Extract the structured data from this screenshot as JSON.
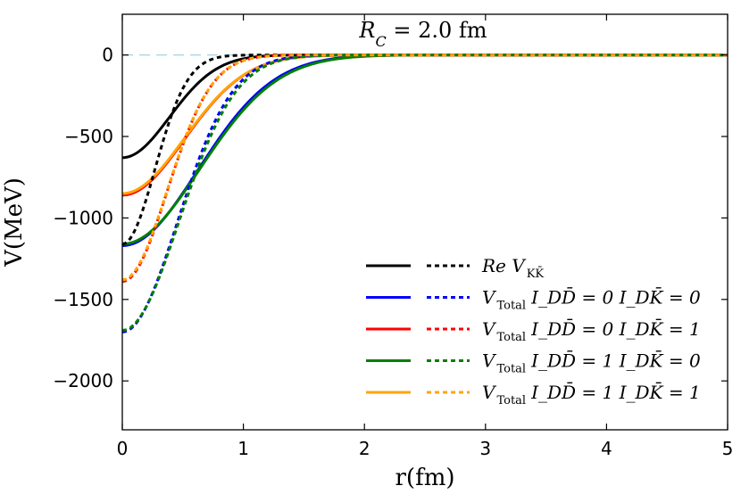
{
  "chart_data": {
    "type": "line",
    "title": "R_C = 2.0 fm",
    "title_parts": {
      "symbol": "R",
      "sub": "C",
      "rest": " = 2.0 fm"
    },
    "xlabel": "r(fm)",
    "ylabel": "V(MeV)",
    "xlim": [
      0,
      5
    ],
    "ylim": [
      -2300,
      250
    ],
    "xticks": [
      0,
      1,
      2,
      3,
      4,
      5
    ],
    "yticks": [
      0,
      -500,
      -1000,
      -1500,
      -2000
    ],
    "xtick_labels": [
      "0",
      "1",
      "2",
      "3",
      "4",
      "5"
    ],
    "ytick_labels": [
      "0",
      "−500",
      "−1000",
      "−1500",
      "−2000"
    ],
    "zero_line": {
      "y": 0,
      "color": "#add8e6",
      "style": "dashed"
    },
    "legend_position": "lower-right",
    "series": [
      {
        "name": "Re V_KK̄",
        "label_main": "Re V",
        "label_sub": "KK̄",
        "color": "#000000",
        "solid": {
          "V0": 630,
          "a": 0.55
        },
        "dashed": {
          "V0": 1160,
          "a": 0.38
        }
      },
      {
        "name": "V_Total I_DD̄ = 0 I_DK̄ = 0",
        "label_main": "V",
        "label_sub": "Total",
        "label_tail": "I_DD̄ = 0  I_DK̄ = 0",
        "color": "#0000ff",
        "solid": {
          "V0": 1170,
          "a": 0.88
        },
        "dashed": {
          "V0": 1700,
          "a": 0.64
        }
      },
      {
        "name": "V_Total I_DD̄ = 0 I_DK̄ = 1",
        "label_main": "V",
        "label_sub": "Total",
        "label_tail": "I_DD̄ = 0  I_DK̄ = 1",
        "color": "#ff0000",
        "solid": {
          "V0": 860,
          "a": 0.72
        },
        "dashed": {
          "V0": 1390,
          "a": 0.52
        }
      },
      {
        "name": "V_Total I_DD̄ = 1 I_DK̄ = 0",
        "label_main": "V",
        "label_sub": "Total",
        "label_tail": "I_DD̄ = 1  I_DK̄ = 0",
        "color": "#008000",
        "solid": {
          "V0": 1160,
          "a": 0.9
        },
        "dashed": {
          "V0": 1690,
          "a": 0.66
        }
      },
      {
        "name": "V_Total I_DD̄ = 1 I_DK̄ = 1",
        "label_main": "V",
        "label_sub": "Total",
        "label_tail": "I_DD̄ = 1  I_DK̄ = 1",
        "color": "#ffa500",
        "solid": {
          "V0": 850,
          "a": 0.72
        },
        "dashed": {
          "V0": 1380,
          "a": 0.52
        }
      }
    ]
  }
}
